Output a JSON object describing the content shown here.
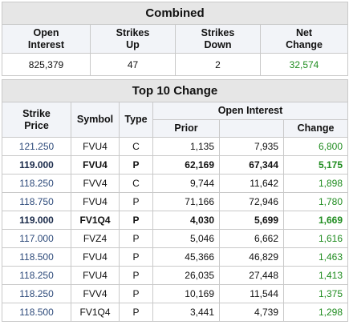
{
  "combined": {
    "title": "Combined",
    "headers": {
      "open_interest": "Open\nInterest",
      "strikes_up": "Strikes\nUp",
      "strikes_down": "Strikes\nDown",
      "net_change": "Net\nChange"
    },
    "values": {
      "open_interest": "825,379",
      "strikes_up": "47",
      "strikes_down": "2",
      "net_change": "32,574"
    }
  },
  "top10": {
    "title": "Top 10 Change",
    "headers": {
      "strike_price": "Strike\nPrice",
      "symbol": "Symbol",
      "type": "Type",
      "open_interest": "Open Interest",
      "prior": "Prior",
      "change": "Change"
    },
    "rows": [
      {
        "strike": "121.250",
        "symbol": "FVU4",
        "type": "C",
        "prior": "1,135",
        "current": "7,935",
        "change": "6,800",
        "bold": false
      },
      {
        "strike": "119.000",
        "symbol": "FVU4",
        "type": "P",
        "prior": "62,169",
        "current": "67,344",
        "change": "5,175",
        "bold": true
      },
      {
        "strike": "118.250",
        "symbol": "FVV4",
        "type": "C",
        "prior": "9,744",
        "current": "11,642",
        "change": "1,898",
        "bold": false
      },
      {
        "strike": "118.750",
        "symbol": "FVU4",
        "type": "P",
        "prior": "71,166",
        "current": "72,946",
        "change": "1,780",
        "bold": false
      },
      {
        "strike": "119.000",
        "symbol": "FV1Q4",
        "type": "P",
        "prior": "4,030",
        "current": "5,699",
        "change": "1,669",
        "bold": true
      },
      {
        "strike": "117.000",
        "symbol": "FVZ4",
        "type": "P",
        "prior": "5,046",
        "current": "6,662",
        "change": "1,616",
        "bold": false
      },
      {
        "strike": "118.500",
        "symbol": "FVU4",
        "type": "P",
        "prior": "45,366",
        "current": "46,829",
        "change": "1,463",
        "bold": false
      },
      {
        "strike": "118.250",
        "symbol": "FVU4",
        "type": "P",
        "prior": "26,035",
        "current": "27,448",
        "change": "1,413",
        "bold": false
      },
      {
        "strike": "118.250",
        "symbol": "FVV4",
        "type": "P",
        "prior": "10,169",
        "current": "11,544",
        "change": "1,375",
        "bold": false
      },
      {
        "strike": "118.500",
        "symbol": "FV1Q4",
        "type": "P",
        "prior": "3,441",
        "current": "4,739",
        "change": "1,298",
        "bold": false
      }
    ]
  },
  "colors": {
    "positive_change": "#1f8c1f",
    "strike_text": "#2d4a7a",
    "header_bg": "#f2f4f8",
    "title_bg": "#e6e6e6"
  }
}
